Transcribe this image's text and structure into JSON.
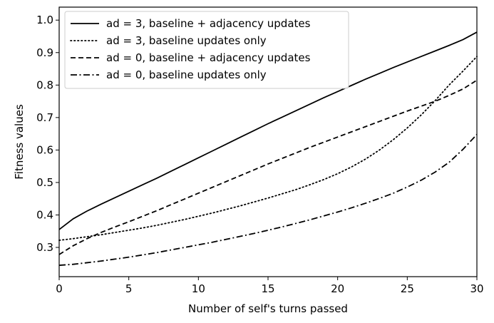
{
  "chart_data": {
    "type": "line",
    "title": "",
    "xlabel": "Number of self's turns passed",
    "ylabel": "Fitness values",
    "xlim": [
      0,
      30
    ],
    "ylim": [
      0.21,
      1.04
    ],
    "xticks": [
      0,
      5,
      10,
      15,
      20,
      25,
      30
    ],
    "xtick_labels": [
      "0",
      "5",
      "10",
      "15",
      "20",
      "25",
      "30"
    ],
    "yticks": [
      0.3,
      0.4,
      0.5,
      0.6,
      0.7,
      0.8,
      0.9,
      1.0
    ],
    "ytick_labels": [
      "0.3",
      "0.4",
      "0.5",
      "0.6",
      "0.7",
      "0.8",
      "0.9",
      "1.0"
    ],
    "grid": false,
    "legend_position": "top-left",
    "x": [
      0,
      1,
      2,
      3,
      4,
      5,
      6,
      7,
      8,
      9,
      10,
      11,
      12,
      13,
      14,
      15,
      16,
      17,
      18,
      19,
      20,
      21,
      22,
      23,
      24,
      25,
      26,
      27,
      28,
      29,
      30
    ],
    "series": [
      {
        "name": "ad = 3, baseline + adjacency updates",
        "style": "solid",
        "color": "#000000",
        "values": [
          0.355,
          0.388,
          0.412,
          0.433,
          0.453,
          0.473,
          0.493,
          0.513,
          0.534,
          0.555,
          0.576,
          0.597,
          0.618,
          0.639,
          0.66,
          0.681,
          0.701,
          0.721,
          0.741,
          0.761,
          0.78,
          0.799,
          0.818,
          0.836,
          0.854,
          0.871,
          0.888,
          0.905,
          0.922,
          0.94,
          0.963
        ]
      },
      {
        "name": "ad = 3, baseline updates only",
        "style": "dotted",
        "color": "#000000",
        "values": [
          0.322,
          0.327,
          0.333,
          0.339,
          0.346,
          0.353,
          0.36,
          0.368,
          0.377,
          0.386,
          0.396,
          0.406,
          0.417,
          0.428,
          0.44,
          0.452,
          0.465,
          0.478,
          0.493,
          0.509,
          0.527,
          0.548,
          0.572,
          0.6,
          0.632,
          0.668,
          0.708,
          0.752,
          0.8,
          0.843,
          0.888
        ]
      },
      {
        "name": "ad = 0, baseline + adjacency updates",
        "style": "dashed",
        "color": "#000000",
        "values": [
          0.278,
          0.305,
          0.327,
          0.346,
          0.363,
          0.379,
          0.396,
          0.413,
          0.431,
          0.449,
          0.467,
          0.485,
          0.503,
          0.521,
          0.539,
          0.557,
          0.574,
          0.591,
          0.608,
          0.624,
          0.64,
          0.656,
          0.672,
          0.688,
          0.704,
          0.72,
          0.735,
          0.75,
          0.768,
          0.788,
          0.815
        ]
      },
      {
        "name": "ad = 0, baseline updates only",
        "style": "dashdot",
        "color": "#000000",
        "values": [
          0.245,
          0.248,
          0.253,
          0.258,
          0.264,
          0.27,
          0.277,
          0.284,
          0.292,
          0.3,
          0.308,
          0.316,
          0.325,
          0.334,
          0.343,
          0.353,
          0.363,
          0.374,
          0.385,
          0.397,
          0.409,
          0.422,
          0.436,
          0.451,
          0.467,
          0.486,
          0.507,
          0.532,
          0.562,
          0.602,
          0.648
        ]
      }
    ]
  }
}
